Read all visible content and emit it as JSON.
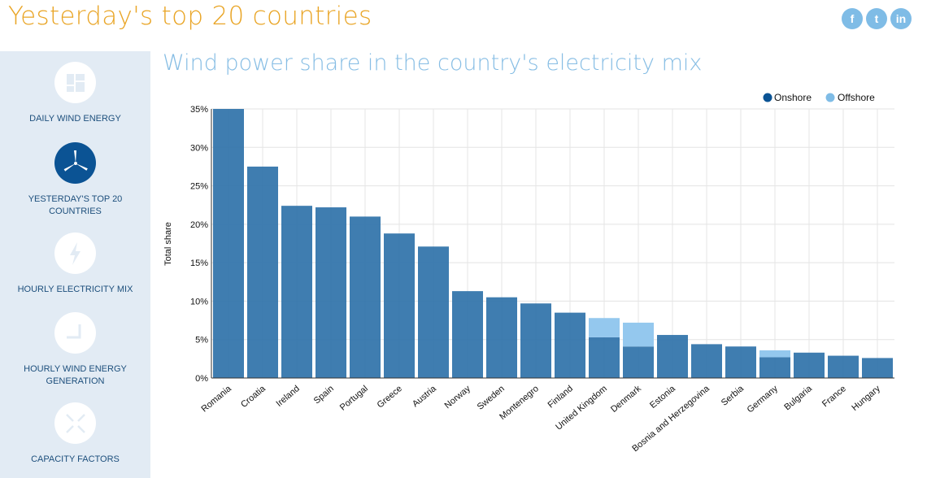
{
  "header": {
    "title": "Yesterday's top 20 countries",
    "social": [
      {
        "icon": "facebook-icon",
        "glyph": "f"
      },
      {
        "icon": "twitter-icon",
        "glyph": "t"
      },
      {
        "icon": "linkedin-icon",
        "glyph": "in"
      }
    ]
  },
  "sidebar": {
    "items": [
      {
        "label": "DAILY WIND ENERGY",
        "icon": "dashboard-icon",
        "active": false
      },
      {
        "label": "YESTERDAY'S TOP 20 COUNTRIES",
        "icon": "wind-turbine-icon",
        "active": true
      },
      {
        "label": "HOURLY ELECTRICITY MIX",
        "icon": "lightning-icon",
        "active": false
      },
      {
        "label": "HOURLY WIND ENERGY GENERATION",
        "icon": "clock-icon",
        "active": false
      },
      {
        "label": "CAPACITY FACTORS",
        "icon": "expand-icon",
        "active": false
      }
    ]
  },
  "colors": {
    "onshore": "#2f72a9",
    "offshore": "#94c8ee",
    "legend_onshore": "#0b5394",
    "legend_offshore": "#7fbce6"
  },
  "chart_data": {
    "type": "bar",
    "stacked": true,
    "title": "Wind power share in the country's electricity mix",
    "xlabel": "",
    "ylabel": "Total share",
    "ylim": [
      0,
      35
    ],
    "yticks": [
      "0%",
      "5%",
      "10%",
      "15%",
      "20%",
      "25%",
      "30%",
      "35%"
    ],
    "legend_position": "top-right",
    "categories": [
      "Romania",
      "Croatia",
      "Ireland",
      "Spain",
      "Portugal",
      "Greece",
      "Austria",
      "Norway",
      "Sweden",
      "Montenegro",
      "Finland",
      "United Kingdom",
      "Denmark",
      "Estonia",
      "Bosnia and Herzegovina",
      "Serbia",
      "Germany",
      "Bulgaria",
      "France",
      "Hungary"
    ],
    "series": [
      {
        "name": "Onshore",
        "values": [
          35,
          27.5,
          22.4,
          22.2,
          21.0,
          18.8,
          17.1,
          11.3,
          10.5,
          9.7,
          8.5,
          5.3,
          4.1,
          5.6,
          4.4,
          4.1,
          2.7,
          3.3,
          2.9,
          2.6
        ]
      },
      {
        "name": "Offshore",
        "values": [
          0,
          0,
          0,
          0,
          0,
          0,
          0,
          0,
          0,
          0,
          0,
          2.5,
          3.1,
          0,
          0,
          0,
          0.9,
          0,
          0,
          0
        ]
      }
    ]
  }
}
